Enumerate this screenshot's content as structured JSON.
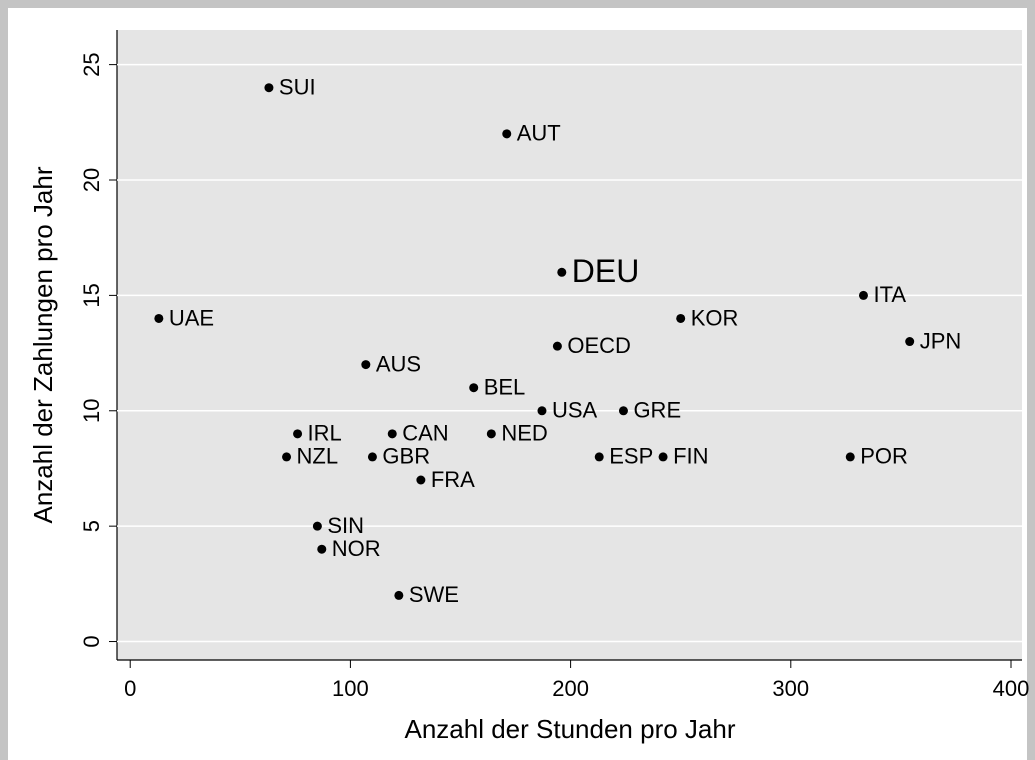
{
  "chart_data": {
    "type": "scatter",
    "xlabel": "Anzahl der Stunden pro Jahr",
    "ylabel": "Anzahl der Zahlungen pro Jahr",
    "labels": [
      "SUI",
      "AUT",
      "DEU",
      "UAE",
      "ITA",
      "KOR",
      "JPN",
      "OECD",
      "AUS",
      "BEL",
      "USA",
      "GRE",
      "IRL",
      "CAN",
      "NED",
      "NZL",
      "GBR",
      "ESP",
      "FIN",
      "POR",
      "FRA",
      "SIN",
      "NOR",
      "SWE"
    ],
    "x": [
      63,
      171,
      196,
      13,
      333,
      250,
      354,
      194,
      107,
      156,
      187,
      224,
      76,
      119,
      164,
      71,
      110,
      213,
      242,
      327,
      132,
      85,
      87,
      122
    ],
    "values": [
      24,
      22,
      16,
      14,
      15,
      14,
      13,
      12.8,
      12,
      11,
      10,
      10,
      9,
      9,
      9,
      8,
      8,
      8,
      8,
      8,
      7,
      5,
      4,
      2
    ],
    "highlight_index": 2,
    "color": "#000000",
    "xlim": [
      -6,
      405
    ],
    "ylim": [
      -0.8,
      26.5
    ],
    "xticks": [
      0,
      100,
      200,
      300,
      400
    ],
    "yticks": [
      0,
      5,
      10,
      15,
      20,
      25
    ],
    "grid": true
  }
}
